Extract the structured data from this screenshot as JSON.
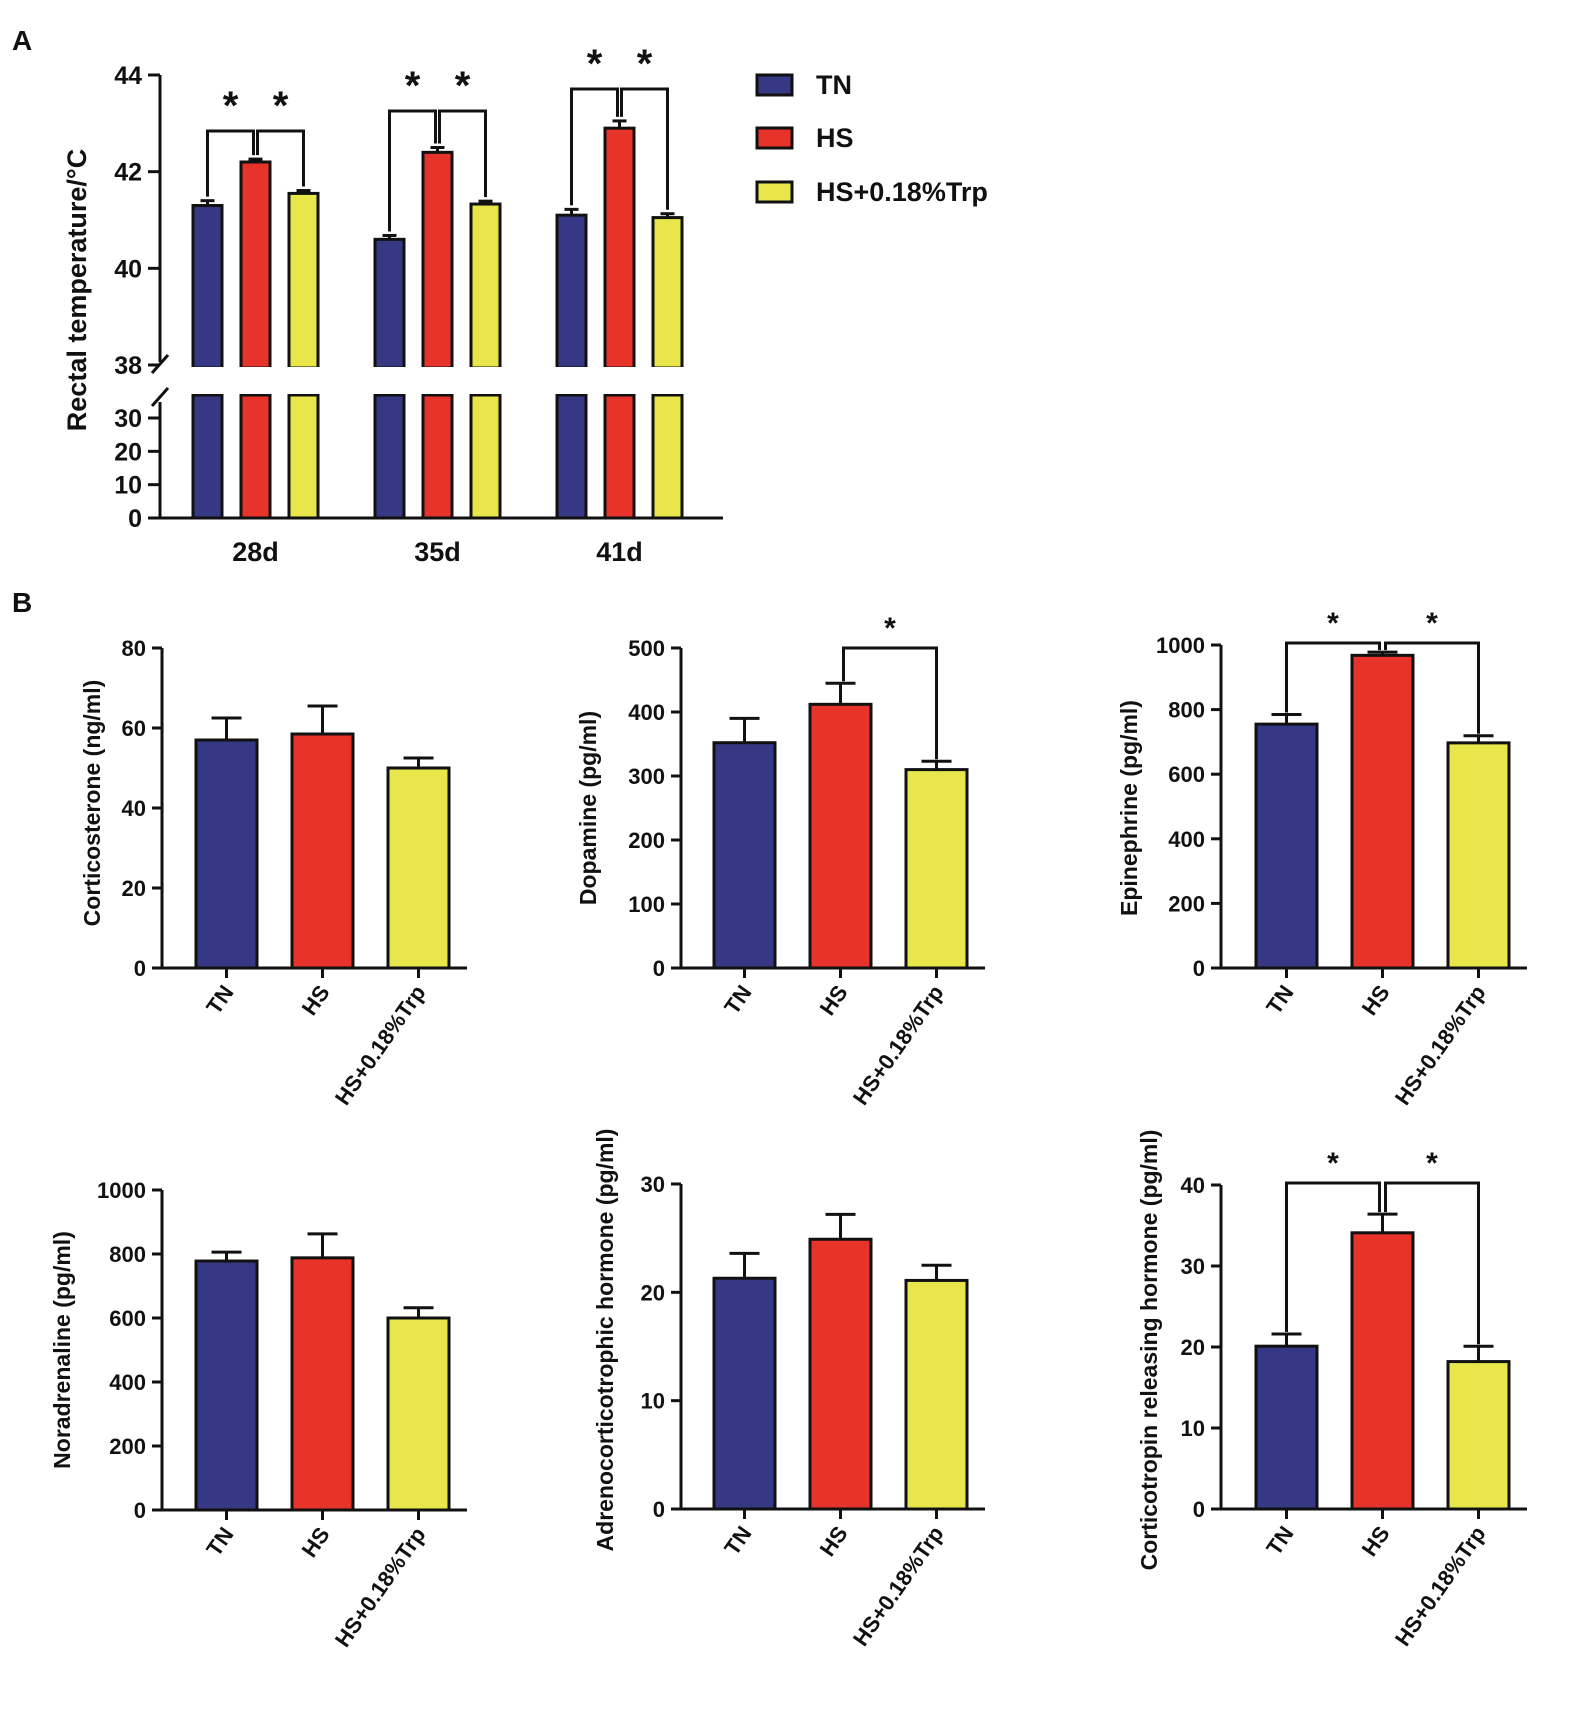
{
  "panel_labels": [
    "A",
    "B"
  ],
  "colors": {
    "TN": "#363785",
    "HS": "#e8332a",
    "HS+0.18%Trp": "#e8e64b"
  },
  "legend": {
    "items": [
      {
        "label": "TN",
        "color": "#363785"
      },
      {
        "label": "HS",
        "color": "#e8332a"
      },
      {
        "label": "HS+0.18%Trp",
        "color": "#e8e64b"
      }
    ]
  },
  "significance_symbol": "*",
  "chart_data": [
    {
      "id": "A",
      "type": "bar",
      "title": "",
      "ylabel": "Rectal temperature/°C",
      "xlabel": "",
      "categories": [
        "28d",
        "35d",
        "41d"
      ],
      "series": [
        {
          "name": "TN",
          "values": [
            41.3,
            40.6,
            41.1
          ],
          "errors": [
            0.1,
            0.08,
            0.12
          ]
        },
        {
          "name": "HS",
          "values": [
            42.2,
            42.4,
            42.9
          ],
          "errors": [
            0.06,
            0.1,
            0.15
          ]
        },
        {
          "name": "HS+0.18%Trp",
          "values": [
            41.55,
            41.33,
            41.05
          ],
          "errors": [
            0.06,
            0.06,
            0.08
          ]
        }
      ],
      "y_axis_break": {
        "lower_range": [
          0,
          30
        ],
        "upper_range": [
          38,
          44
        ]
      },
      "lower_ticks": [
        "0",
        "10",
        "20",
        "30"
      ],
      "upper_ticks": [
        "38",
        "40",
        "42",
        "44"
      ],
      "significance": [
        {
          "category": "28d",
          "pairs": [
            [
              "TN",
              "HS"
            ],
            [
              "HS",
              "HS+0.18%Trp"
            ]
          ]
        },
        {
          "category": "35d",
          "pairs": [
            [
              "TN",
              "HS"
            ],
            [
              "HS",
              "HS+0.18%Trp"
            ]
          ]
        },
        {
          "category": "41d",
          "pairs": [
            [
              "TN",
              "HS"
            ],
            [
              "HS",
              "HS+0.18%Trp"
            ]
          ]
        }
      ]
    },
    {
      "id": "B1",
      "type": "bar",
      "ylabel": "Corticosterone (ng/ml)",
      "categories": [
        "TN",
        "HS",
        "HS+0.18%Trp"
      ],
      "values": [
        57,
        58.5,
        50
      ],
      "errors": [
        5.5,
        7,
        2.5
      ],
      "ylim": [
        0,
        80
      ],
      "ticks": [
        "0",
        "20",
        "40",
        "60",
        "80"
      ],
      "significance": []
    },
    {
      "id": "B2",
      "type": "bar",
      "ylabel": "Dopamine (pg/ml)",
      "categories": [
        "TN",
        "HS",
        "HS+0.18%Trp"
      ],
      "values": [
        352,
        412,
        310
      ],
      "errors": [
        38,
        33,
        13
      ],
      "ylim": [
        0,
        500
      ],
      "ticks": [
        "0",
        "100",
        "200",
        "300",
        "400",
        "500"
      ],
      "significance": [
        [
          "HS",
          "HS+0.18%Trp"
        ]
      ]
    },
    {
      "id": "B3",
      "type": "bar",
      "ylabel": "Epinephrine (pg/ml)",
      "categories": [
        "TN",
        "HS",
        "HS+0.18%Trp"
      ],
      "values": [
        755,
        968,
        697
      ],
      "errors": [
        30,
        10,
        22
      ],
      "ylim": [
        0,
        1000
      ],
      "ticks": [
        "0",
        "200",
        "400",
        "600",
        "800",
        "1000"
      ],
      "significance": [
        [
          "TN",
          "HS"
        ],
        [
          "HS",
          "HS+0.18%Trp"
        ]
      ]
    },
    {
      "id": "B4",
      "type": "bar",
      "ylabel": "Noradrenaline (pg/ml)",
      "categories": [
        "TN",
        "HS",
        "HS+0.18%Trp"
      ],
      "values": [
        778,
        788,
        600
      ],
      "errors": [
        28,
        75,
        32
      ],
      "ylim": [
        0,
        1000
      ],
      "ticks": [
        "0",
        "200",
        "400",
        "600",
        "800",
        "1000"
      ],
      "significance": []
    },
    {
      "id": "B5",
      "type": "bar",
      "ylabel": "Adrenocorticotrophic hormone (pg/ml)",
      "categories": [
        "TN",
        "HS",
        "HS+0.18%Trp"
      ],
      "values": [
        21.3,
        24.9,
        21.1
      ],
      "errors": [
        2.3,
        2.3,
        1.4
      ],
      "ylim": [
        0,
        30
      ],
      "ticks": [
        "0",
        "10",
        "20",
        "30"
      ],
      "significance": []
    },
    {
      "id": "B6",
      "type": "bar",
      "ylabel": "Corticotropin releasing hormone (pg/ml)",
      "categories": [
        "TN",
        "HS",
        "HS+0.18%Trp"
      ],
      "values": [
        20.1,
        34.1,
        18.2
      ],
      "errors": [
        1.5,
        2.3,
        1.9
      ],
      "ylim": [
        0,
        40
      ],
      "ticks": [
        "0",
        "10",
        "20",
        "30",
        "40"
      ],
      "significance": [
        [
          "TN",
          "HS"
        ],
        [
          "HS",
          "HS+0.18%Trp"
        ]
      ]
    }
  ]
}
